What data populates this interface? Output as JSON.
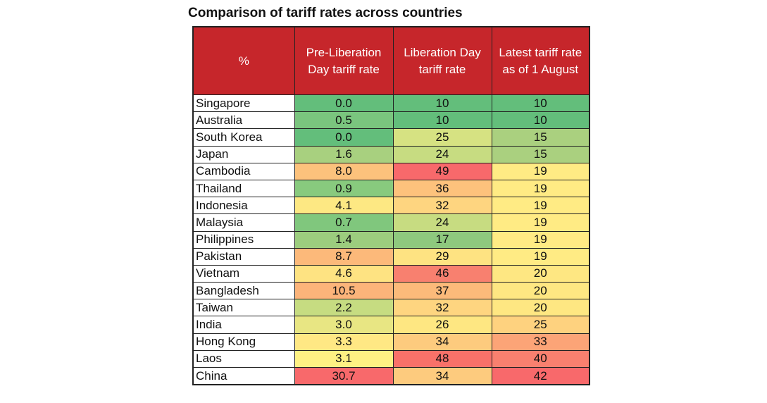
{
  "chart_data": {
    "type": "table",
    "title": "Comparison of tariff rates across countries",
    "columns": [
      "%",
      "Pre-Liberation Day tariff rate",
      "Liberation Day tariff rate",
      "Latest tariff rate as of 1 August"
    ],
    "rows": [
      {
        "country": "Singapore",
        "values": [
          "0.0",
          "10",
          "10"
        ],
        "colors": [
          "#63be7b",
          "#63be7b",
          "#63be7b"
        ]
      },
      {
        "country": "Australia",
        "values": [
          "0.5",
          "10",
          "10"
        ],
        "colors": [
          "#7ac57e",
          "#63be7b",
          "#63be7b"
        ]
      },
      {
        "country": "South Korea",
        "values": [
          "0.0",
          "25",
          "15"
        ],
        "colors": [
          "#63be7b",
          "#d6e282",
          "#aad07f"
        ]
      },
      {
        "country": "Japan",
        "values": [
          "1.6",
          "24",
          "15"
        ],
        "colors": [
          "#a8d07f",
          "#c7dc81",
          "#aad07f"
        ]
      },
      {
        "country": "Cambodia",
        "values": [
          "8.0",
          "49",
          "19"
        ],
        "colors": [
          "#fcc27c",
          "#f8696b",
          "#ffeb84"
        ]
      },
      {
        "country": "Thailand",
        "values": [
          "0.9",
          "36",
          "19"
        ],
        "colors": [
          "#88ca7e",
          "#fdc27c",
          "#ffeb84"
        ]
      },
      {
        "country": "Indonesia",
        "values": [
          "4.1",
          "32",
          "19"
        ],
        "colors": [
          "#fde883",
          "#fed580",
          "#ffeb84"
        ]
      },
      {
        "country": "Malaysia",
        "values": [
          "0.7",
          "24",
          "19"
        ],
        "colors": [
          "#80c77d",
          "#c7dc81",
          "#ffeb84"
        ]
      },
      {
        "country": "Philippines",
        "values": [
          "1.4",
          "17",
          "19"
        ],
        "colors": [
          "#9ccd7e",
          "#8ec97e",
          "#ffeb84"
        ]
      },
      {
        "country": "Pakistan",
        "values": [
          "8.7",
          "29",
          "19"
        ],
        "colors": [
          "#fcb97a",
          "#fee382",
          "#ffeb84"
        ]
      },
      {
        "country": "Vietnam",
        "values": [
          "4.6",
          "46",
          "20"
        ],
        "colors": [
          "#fee382",
          "#f8806f",
          "#fee782"
        ]
      },
      {
        "country": "Bangladesh",
        "values": [
          "10.5",
          "37",
          "20"
        ],
        "colors": [
          "#fcb47a",
          "#fcba7a",
          "#fee782"
        ]
      },
      {
        "country": "Taiwan",
        "values": [
          "2.2",
          "32",
          "20"
        ],
        "colors": [
          "#c6dc81",
          "#fed580",
          "#fee782"
        ]
      },
      {
        "country": "India",
        "values": [
          "3.0",
          "26",
          "25"
        ],
        "colors": [
          "#e8e683",
          "#fee782",
          "#fed27f"
        ]
      },
      {
        "country": "Hong Kong",
        "values": [
          "3.3",
          "34",
          "33"
        ],
        "colors": [
          "#ffe884",
          "#fdcb7e",
          "#fca477"
        ]
      },
      {
        "country": "Laos",
        "values": [
          "3.1",
          "48",
          "40"
        ],
        "colors": [
          "#fef183",
          "#f87169",
          "#f9806f"
        ]
      },
      {
        "country": "China",
        "values": [
          "30.7",
          "34",
          "42"
        ],
        "colors": [
          "#f8696b",
          "#fdcb7e",
          "#f8696b"
        ]
      }
    ]
  }
}
